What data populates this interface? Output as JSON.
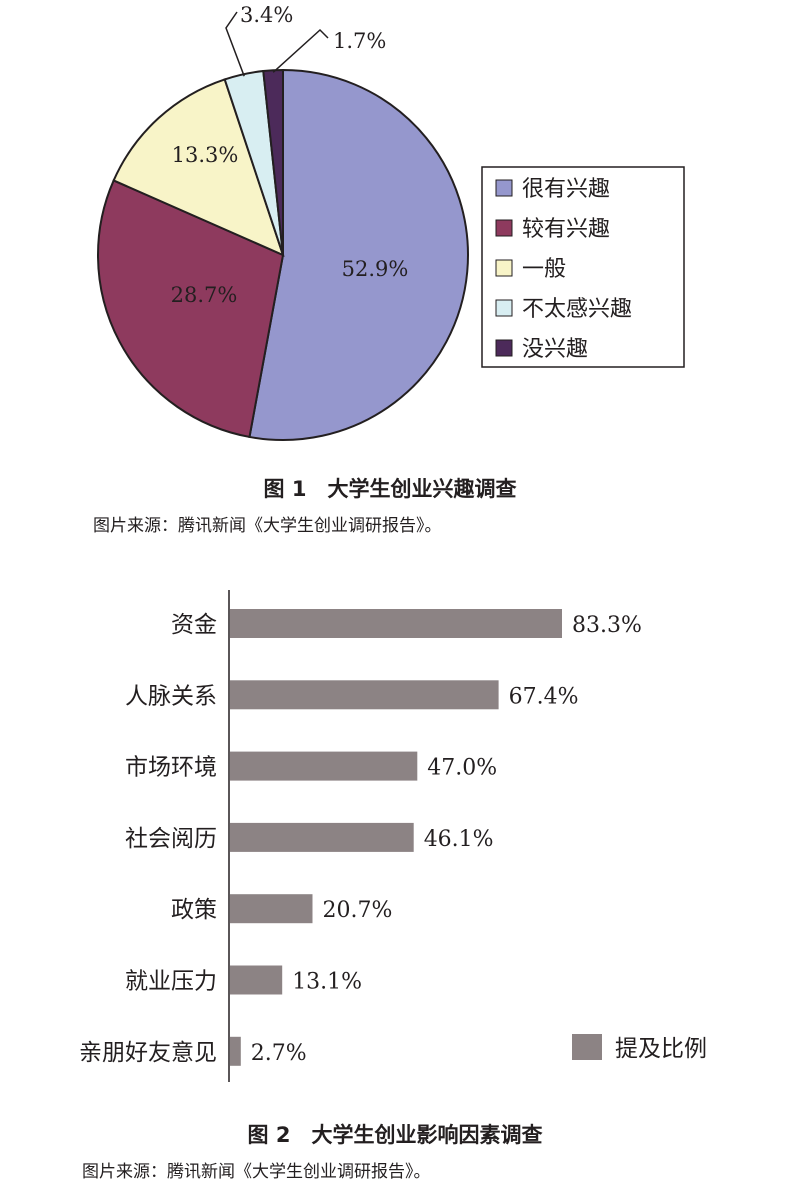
{
  "chart_data": [
    {
      "type": "pie",
      "title": "图 1　大学生创业兴趣调查",
      "source": "图片来源：腾讯新闻《大学生创业调研报告》。",
      "slices": [
        {
          "label": "很有兴趣",
          "value": 52.9,
          "value_label": "52.9%",
          "color": "#9597cd"
        },
        {
          "label": "较有兴趣",
          "value": 28.7,
          "value_label": "28.7%",
          "color": "#8e3a5e"
        },
        {
          "label": "一般",
          "value": 13.3,
          "value_label": "13.3%",
          "color": "#f8f4c8"
        },
        {
          "label": "不太感兴趣",
          "value": 3.4,
          "value_label": "3.4%",
          "color": "#d8eef2"
        },
        {
          "label": "没兴趣",
          "value": 1.7,
          "value_label": "1.7%",
          "color": "#4c2a5a"
        }
      ],
      "legend_position": "right"
    },
    {
      "type": "bar",
      "orientation": "horizontal",
      "title": "图 2　大学生创业影响因素调查",
      "source": "图片来源：腾讯新闻《大学生创业调研报告》。",
      "categories": [
        "资金",
        "人脉关系",
        "市场环境",
        "社会阅历",
        "政策",
        "就业压力",
        "亲朋好友意见"
      ],
      "series": [
        {
          "name": "提及比例",
          "values": [
            83.3,
            67.4,
            47.0,
            46.1,
            20.7,
            13.1,
            2.7
          ],
          "color": "#8c8384"
        }
      ],
      "value_labels": [
        "83.3%",
        "67.4%",
        "47.0%",
        "46.1%",
        "20.7%",
        "13.1%",
        "2.7%"
      ],
      "legend_position": "bottom-right"
    }
  ]
}
